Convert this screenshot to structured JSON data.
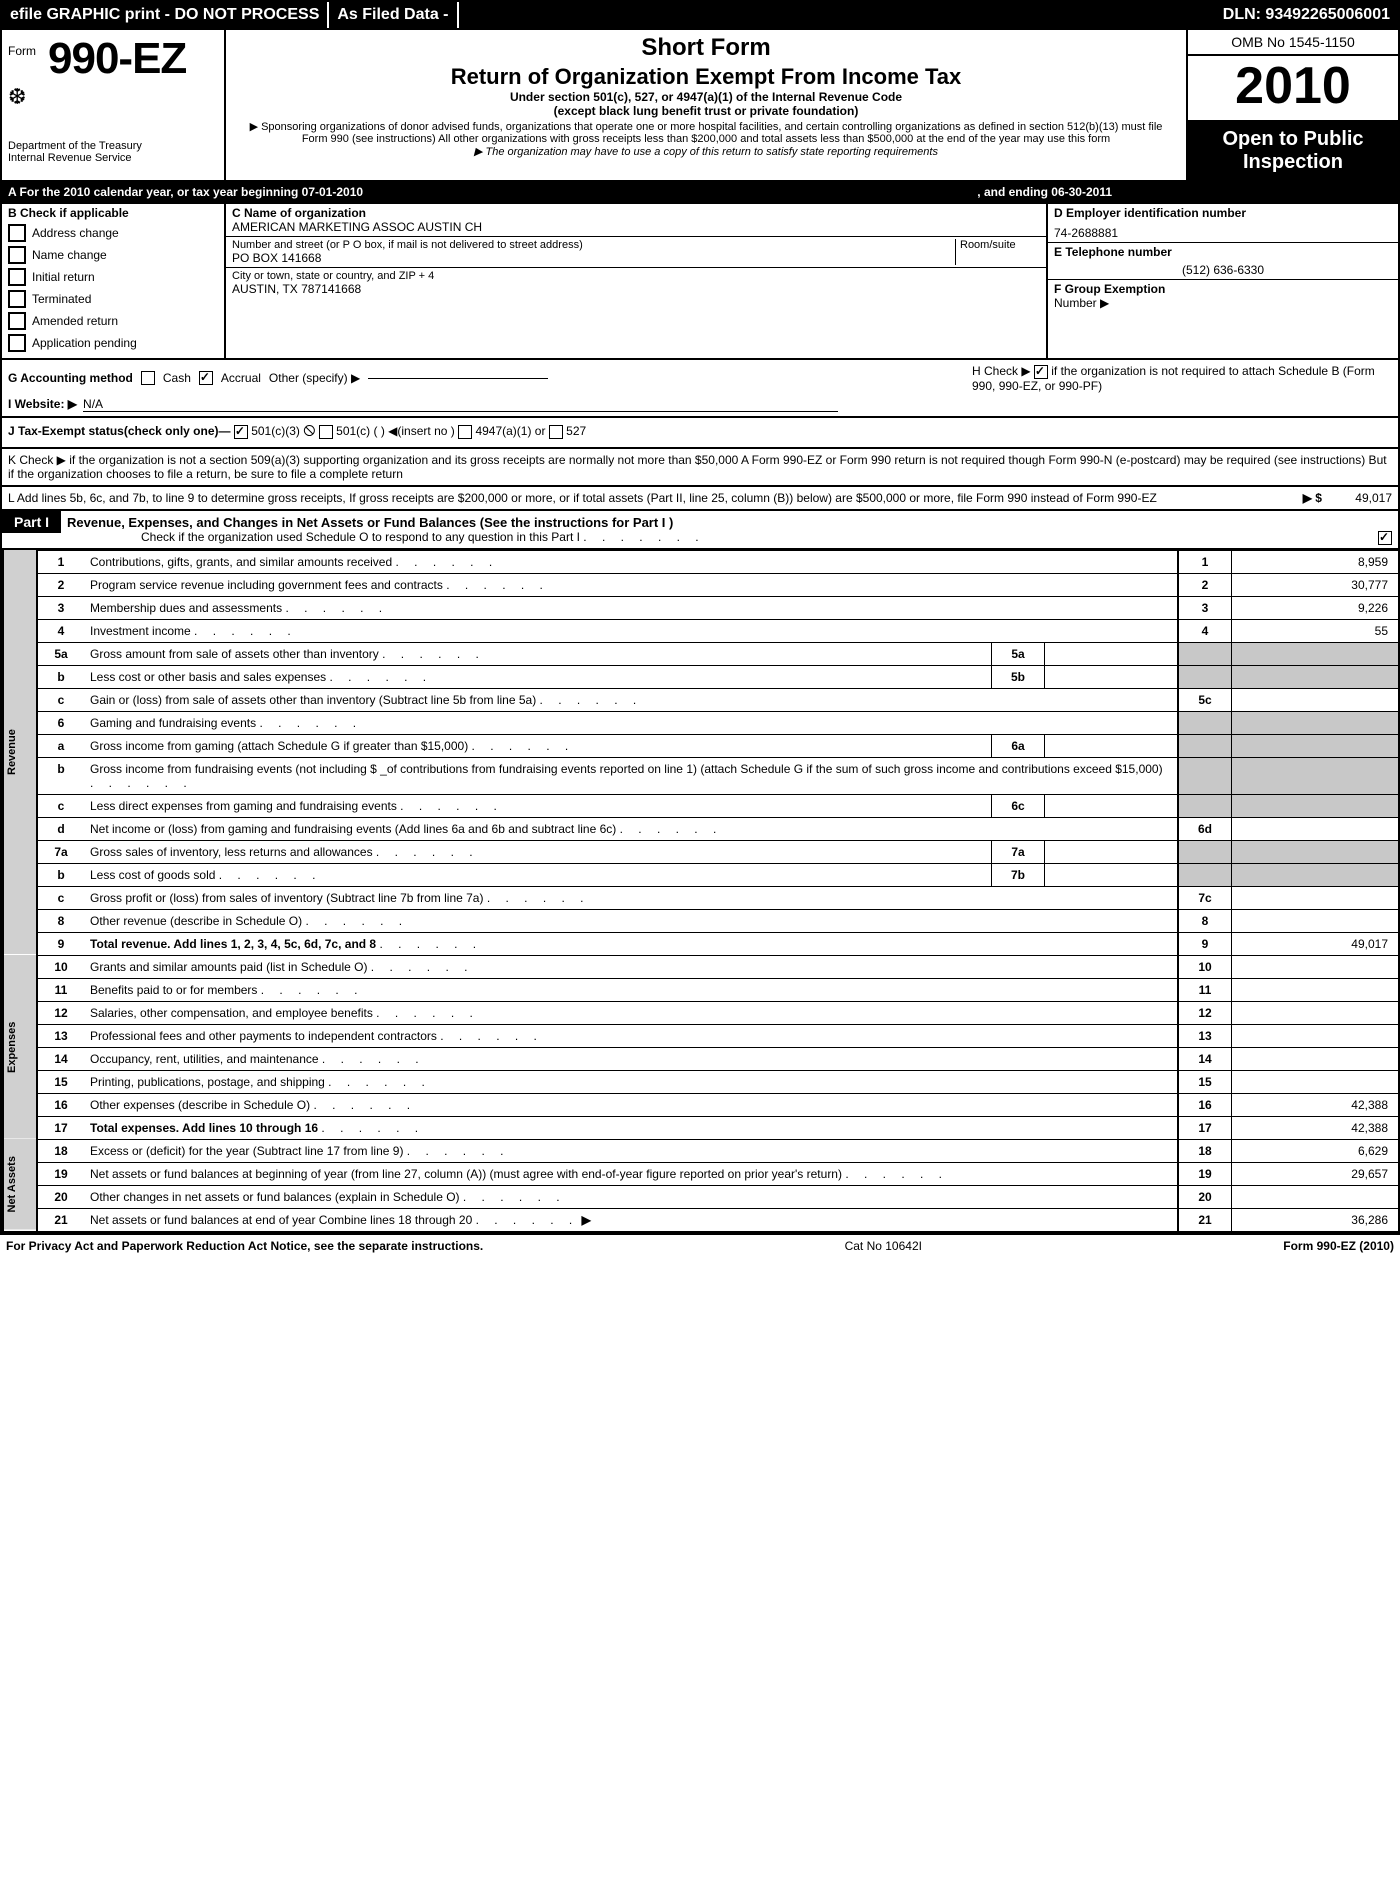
{
  "topbar": {
    "efile": "efile GRAPHIC print - DO NOT PROCESS",
    "asfiled": "As Filed Data -",
    "dln": "DLN: 93492265006001"
  },
  "header": {
    "form_prefix": "Form",
    "form_number": "990-EZ",
    "dept": "Department of the Treasury",
    "irs": "Internal Revenue Service",
    "short": "Short Form",
    "return": "Return of Organization Exempt From Income Tax",
    "under": "Under section 501(c), 527, or 4947(a)(1) of the Internal Revenue Code",
    "except": "(except black lung benefit trust or private foundation)",
    "sponsor": "▶ Sponsoring organizations of donor advised funds, organizations that operate one or more hospital facilities, and certain controlling organizations as defined in section 512(b)(13) must file Form 990 (see instructions)  All other organizations with gross receipts less than $200,000 and total assets less than $500,000 at the end of the year may use this form",
    "maysat": "▶ The organization may have to use a copy of this return to satisfy state reporting requirements",
    "omb": "OMB No  1545-1150",
    "year": "2010",
    "open1": "Open to Public",
    "open2": "Inspection"
  },
  "rowA": {
    "text": "A  For the 2010 calendar year, or tax year beginning 07-01-2010",
    "ending": ", and ending 06-30-2011"
  },
  "colB": {
    "title": "B  Check if applicable",
    "items": [
      "Address change",
      "Name change",
      "Initial return",
      "Terminated",
      "Amended return",
      "Application pending"
    ]
  },
  "colC": {
    "name_label": "C Name of organization",
    "name": "AMERICAN MARKETING ASSOC AUSTIN CH",
    "street_label": "Number and street (or P  O  box, if mail is not delivered to street address)",
    "room_label": "Room/suite",
    "street": "PO BOX 141668",
    "city_label": "City or town, state or country, and ZIP + 4",
    "city": "AUSTIN, TX  787141668"
  },
  "colD": {
    "ein_label": "D Employer identification number",
    "ein": "74-2688881",
    "tel_label": "E Telephone number",
    "tel": "(512) 636-6330",
    "f_label": "F Group Exemption",
    "f_label2": "Number ▶"
  },
  "rowG": {
    "acct": "G Accounting method",
    "cash": "Cash",
    "accrual": "Accrual",
    "other": "Other (specify) ▶",
    "website_label": "I Website: ▶",
    "website": "N/A",
    "h_text": "H  Check ▶",
    "h_text2": "if the organization is not required to attach Schedule B (Form 990, 990-EZ, or 990-PF)"
  },
  "rowJ": {
    "text": "J Tax-Exempt status(check only one)—",
    "c3": "501(c)(3)",
    "c": "501(c) (   ) ◀(insert no )",
    "a1": "4947(a)(1) or",
    "s527": "527"
  },
  "rowK": "K Check ▶      if the organization is not a section 509(a)(3) supporting organization and its gross receipts are normally not more than $50,000  A Form 990-EZ or Form 990 return is not required though Form 990-N (e-postcard) may be required (see instructions)  But if the organization chooses to file a return, be sure to file a complete return",
  "rowL": {
    "text": "L Add lines 5b, 6c, and 7b, to line 9 to determine gross receipts, If gross receipts are $200,000 or more, or if total assets (Part II, line 25, column (B)) below) are $500,000 or more,  file Form 990 instead of Form 990-EZ",
    "arrow": "▶ $",
    "amount": "49,017"
  },
  "partI": {
    "label": "Part I",
    "title": "Revenue, Expenses, and Changes in Net Assets or Fund Balances (See the instructions for Part I )",
    "sub": "Check if the organization used Schedule O to respond to any question in this Part I"
  },
  "sections": {
    "revenue": "Revenue",
    "expenses": "Expenses",
    "netassets": "Net Assets"
  },
  "lines": [
    {
      "n": "1",
      "desc": "Contributions, gifts, grants, and similar amounts received",
      "box": "1",
      "val": "8,959"
    },
    {
      "n": "2",
      "desc": "Program service revenue including government fees and contracts",
      "box": "2",
      "val": "30,777"
    },
    {
      "n": "3",
      "desc": "Membership dues and assessments",
      "box": "3",
      "val": "9,226"
    },
    {
      "n": "4",
      "desc": "Investment income",
      "box": "4",
      "val": "55"
    },
    {
      "n": "5a",
      "desc": "Gross amount from sale of assets other than inventory",
      "inner_box": "5a",
      "inner_val": "",
      "shade_right": true
    },
    {
      "n": "b",
      "desc": "Less  cost or other basis and sales expenses",
      "inner_box": "5b",
      "inner_val": "",
      "shade_right": true
    },
    {
      "n": "c",
      "desc": "Gain or (loss) from sale of assets other than inventory (Subtract line 5b from line 5a)",
      "box": "5c",
      "val": ""
    },
    {
      "n": "6",
      "desc": "Gaming and fundraising events",
      "shade_right": true,
      "no_box": true
    },
    {
      "n": "a",
      "desc": "Gross income from gaming (attach Schedule G if greater than $15,000)",
      "inner_box": "6a",
      "inner_val": "",
      "shade_right": true
    },
    {
      "n": "b",
      "desc": "Gross income from fundraising events (not including $ _of contributions from fundraising events reported on line 1) (attach Schedule G if the sum of such gross income and contributions exceed $15,000)",
      "shade_right": true,
      "no_box": true
    },
    {
      "n": "c",
      "desc": "Less  direct expenses from gaming and fundraising events",
      "inner_box": "6c",
      "inner_val": "",
      "shade_right": true
    },
    {
      "n": "d",
      "desc": "Net income or (loss) from gaming and fundraising events (Add lines 6a and 6b and subtract line 6c)",
      "box": "6d",
      "val": ""
    },
    {
      "n": "7a",
      "desc": "Gross sales of inventory, less returns and allowances",
      "inner_box": "7a",
      "inner_val": "",
      "shade_right": true
    },
    {
      "n": "b",
      "desc": "Less  cost of goods sold",
      "inner_box": "7b",
      "inner_val": "",
      "shade_right": true
    },
    {
      "n": "c",
      "desc": "Gross profit or (loss) from sales of inventory (Subtract line 7b from line 7a)",
      "box": "7c",
      "val": ""
    },
    {
      "n": "8",
      "desc": "Other revenue (describe in Schedule O)",
      "box": "8",
      "val": ""
    },
    {
      "n": "9",
      "desc": "Total revenue. Add lines 1, 2, 3, 4, 5c, 6d, 7c, and 8",
      "box": "9",
      "val": "49,017",
      "bold": true
    }
  ],
  "expenses_lines": [
    {
      "n": "10",
      "desc": "Grants and similar amounts paid (list in Schedule O)",
      "box": "10",
      "val": ""
    },
    {
      "n": "11",
      "desc": "Benefits paid to or for members",
      "box": "11",
      "val": ""
    },
    {
      "n": "12",
      "desc": "Salaries, other compensation, and employee benefits",
      "box": "12",
      "val": ""
    },
    {
      "n": "13",
      "desc": "Professional fees and other payments to independent contractors",
      "box": "13",
      "val": ""
    },
    {
      "n": "14",
      "desc": "Occupancy, rent, utilities, and maintenance",
      "box": "14",
      "val": ""
    },
    {
      "n": "15",
      "desc": "Printing, publications, postage, and shipping",
      "box": "15",
      "val": ""
    },
    {
      "n": "16",
      "desc": "Other expenses (describe in Schedule O)",
      "box": "16",
      "val": "42,388"
    },
    {
      "n": "17",
      "desc": "Total expenses. Add lines 10 through 16",
      "box": "17",
      "val": "42,388",
      "bold": true
    }
  ],
  "net_lines": [
    {
      "n": "18",
      "desc": "Excess or (deficit) for the year (Subtract line 17 from line 9)",
      "box": "18",
      "val": "6,629"
    },
    {
      "n": "19",
      "desc": "Net assets or fund balances at beginning of year (from line 27, column (A)) (must agree with end-of-year figure reported on prior year's return)",
      "box": "19",
      "val": "29,657"
    },
    {
      "n": "20",
      "desc": "Other changes in net assets or fund balances (explain in Schedule O)",
      "box": "20",
      "val": ""
    },
    {
      "n": "21",
      "desc": "Net assets or fund balances at end of year  Combine lines 18 through 20",
      "box": "21",
      "val": "36,286",
      "arrow": true
    }
  ],
  "footer": {
    "left": "For Privacy Act and Paperwork Reduction Act Notice, see the separate instructions.",
    "mid": "Cat  No  10642I",
    "right": "Form 990-EZ (2010)"
  }
}
